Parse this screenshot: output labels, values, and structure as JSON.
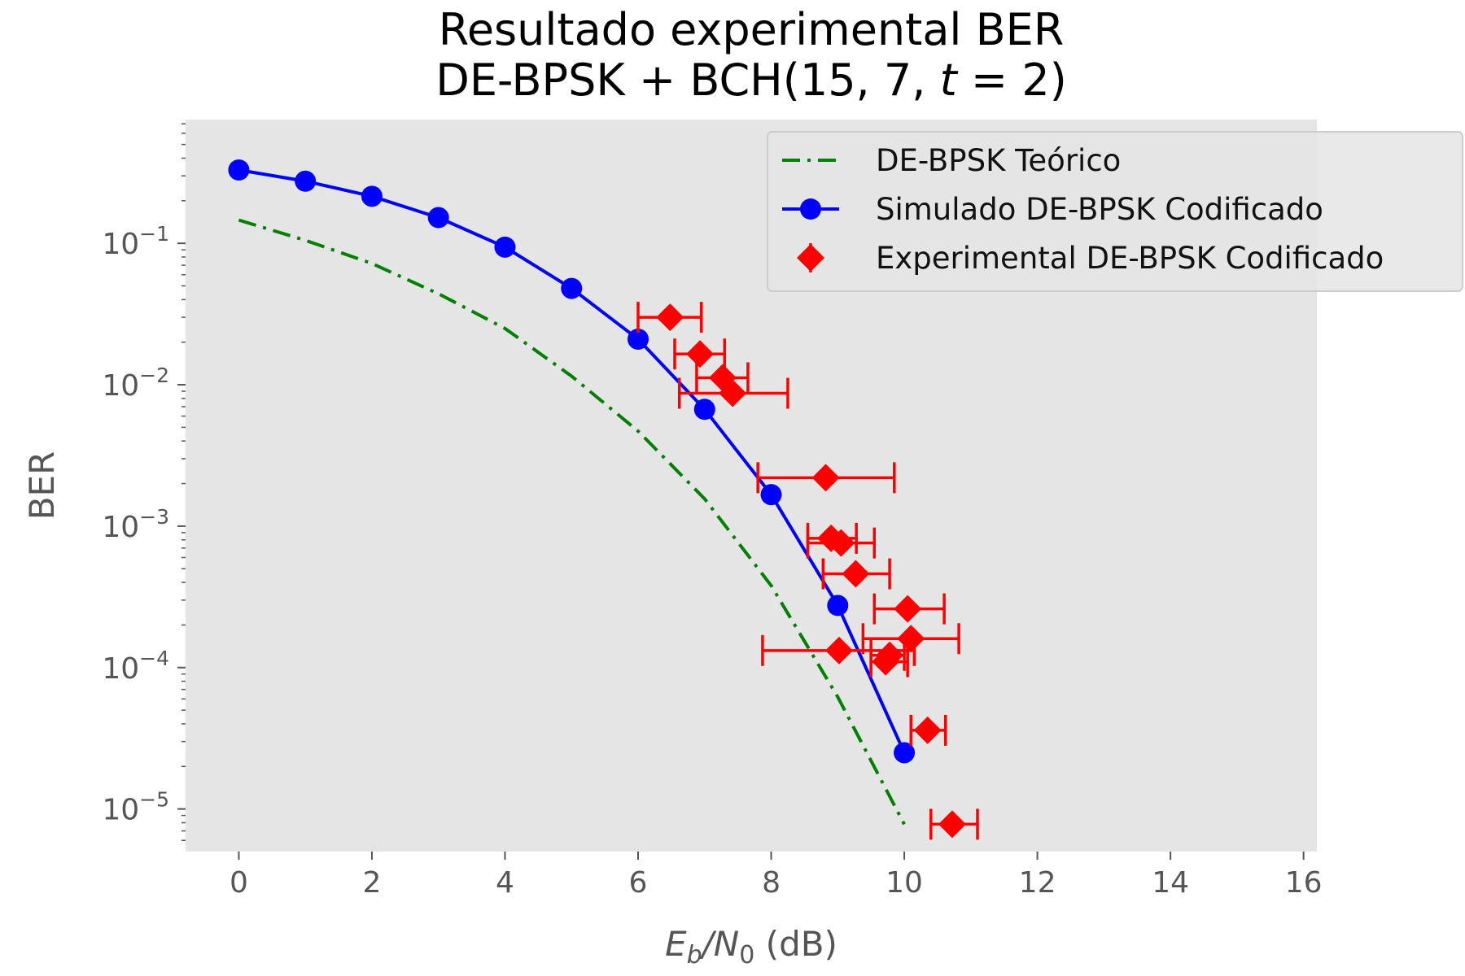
{
  "chart_data": {
    "type": "line",
    "title": "Resultado experimental BER",
    "subtitle": "DE-BPSK + BCH(15, 7, t = 2)",
    "xlabel": "Eb/N0 (dB)",
    "ylabel": "BER",
    "xlim": [
      -0.8,
      16.2
    ],
    "ylim": [
      5e-06,
      0.75
    ],
    "yscale": "log",
    "xticks": [
      0,
      2,
      4,
      6,
      8,
      10,
      12,
      14,
      16
    ],
    "xtick_labels": [
      "0",
      "2",
      "4",
      "6",
      "8",
      "10",
      "12",
      "14",
      "16"
    ],
    "yticks": [
      0.1,
      0.01,
      0.001,
      0.0001,
      1e-05
    ],
    "ytick_labels": [
      {
        "base": "10",
        "exp": "−1"
      },
      {
        "base": "10",
        "exp": "−2"
      },
      {
        "base": "10",
        "exp": "−3"
      },
      {
        "base": "10",
        "exp": "−4"
      },
      {
        "base": "10",
        "exp": "−5"
      }
    ],
    "grid": false,
    "background": "#e5e5e5",
    "legend_position": "top-right",
    "series": [
      {
        "name": "DE-BPSK Teórico",
        "style": "dashdot",
        "color": "#008000",
        "x": [
          0,
          1,
          2,
          3,
          4,
          5,
          6,
          7,
          8,
          9,
          10
        ],
        "y": [
          0.146,
          0.105,
          0.072,
          0.044,
          0.025,
          0.0115,
          0.0047,
          0.00156,
          0.00038,
          6.2e-05,
          7.8e-06
        ]
      },
      {
        "name": "Simulado DE-BPSK Codificado",
        "style": "line-marker",
        "color": "#0000ff",
        "x": [
          0,
          1,
          2,
          3,
          4,
          5,
          6,
          7,
          8,
          9,
          10
        ],
        "y": [
          0.33,
          0.275,
          0.215,
          0.152,
          0.094,
          0.048,
          0.021,
          0.0067,
          0.00167,
          0.000275,
          2.5e-05
        ]
      },
      {
        "name": "Experimental DE-BPSK Codificado",
        "style": "errorbar-diamond",
        "color": "#ff0000",
        "points": [
          {
            "x": 6.48,
            "y": 0.03,
            "xmin": 6.0,
            "xmax": 6.95
          },
          {
            "x": 6.93,
            "y": 0.0165,
            "xmin": 6.55,
            "xmax": 7.3
          },
          {
            "x": 7.27,
            "y": 0.0112,
            "xmin": 6.88,
            "xmax": 7.65
          },
          {
            "x": 7.42,
            "y": 0.0087,
            "xmin": 6.62,
            "xmax": 8.25
          },
          {
            "x": 8.82,
            "y": 0.0022,
            "xmin": 7.8,
            "xmax": 9.85
          },
          {
            "x": 8.9,
            "y": 0.00082,
            "xmin": 8.55,
            "xmax": 9.28
          },
          {
            "x": 9.05,
            "y": 0.00076,
            "xmin": 8.55,
            "xmax": 9.55
          },
          {
            "x": 9.27,
            "y": 0.00046,
            "xmin": 8.78,
            "xmax": 9.78
          },
          {
            "x": 10.05,
            "y": 0.00026,
            "xmin": 9.55,
            "xmax": 10.6
          },
          {
            "x": 10.1,
            "y": 0.00016,
            "xmin": 9.38,
            "xmax": 10.82
          },
          {
            "x": 9.02,
            "y": 0.000132,
            "xmin": 7.87,
            "xmax": 10.15
          },
          {
            "x": 9.78,
            "y": 0.000122,
            "xmin": 9.5,
            "xmax": 10.0
          },
          {
            "x": 9.72,
            "y": 0.00011,
            "xmin": 9.5,
            "xmax": 10.05
          },
          {
            "x": 10.35,
            "y": 3.6e-05,
            "xmin": 10.1,
            "xmax": 10.62
          },
          {
            "x": 10.72,
            "y": 7.8e-06,
            "xmin": 10.4,
            "xmax": 11.1
          }
        ]
      }
    ]
  }
}
